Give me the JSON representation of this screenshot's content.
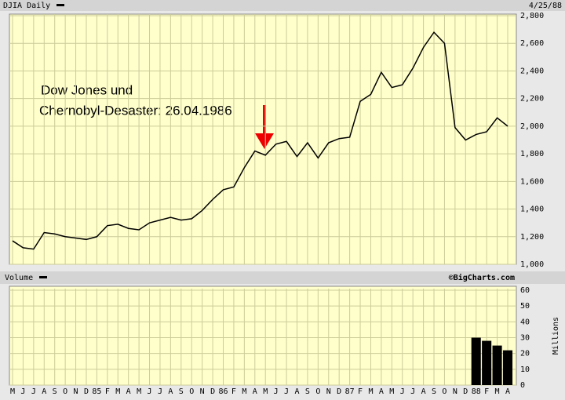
{
  "chart_data": [
    {
      "type": "line",
      "title": "DJIA Daily",
      "date": "4/25/88",
      "annotation": [
        "Dow Jones und",
        "Chernobyl-Desaster: 26.04.1986"
      ],
      "categories": [
        "M",
        "J",
        "J",
        "A",
        "S",
        "O",
        "N",
        "D",
        "85",
        "F",
        "M",
        "A",
        "M",
        "J",
        "J",
        "A",
        "S",
        "O",
        "N",
        "D",
        "86",
        "F",
        "M",
        "A",
        "M",
        "J",
        "J",
        "A",
        "S",
        "O",
        "N",
        "D",
        "87",
        "F",
        "M",
        "A",
        "M",
        "J",
        "J",
        "A",
        "S",
        "O",
        "N",
        "D",
        "88",
        "F",
        "M",
        "A"
      ],
      "series": [
        {
          "name": "DJIA",
          "color": "#000000",
          "values": [
            1170,
            1120,
            1110,
            1230,
            1220,
            1200,
            1190,
            1180,
            1200,
            1280,
            1290,
            1260,
            1250,
            1300,
            1320,
            1340,
            1320,
            1330,
            1390,
            1470,
            1540,
            1560,
            1700,
            1820,
            1790,
            1870,
            1890,
            1780,
            1880,
            1770,
            1880,
            1910,
            1920,
            2180,
            2230,
            2390,
            2280,
            2300,
            2420,
            2570,
            2680,
            2600,
            1990,
            1900,
            1940,
            1960,
            2060,
            2000
          ]
        }
      ],
      "ylim": [
        1000,
        2800
      ],
      "yticks": [
        {
          "value": 1000,
          "label": "1,000"
        },
        {
          "value": 1200,
          "label": "1,200"
        },
        {
          "value": 1400,
          "label": "1,400"
        },
        {
          "value": 1600,
          "label": "1,600"
        },
        {
          "value": 1800,
          "label": "1,800"
        },
        {
          "value": 2000,
          "label": "2,000"
        },
        {
          "value": 2200,
          "label": "2,200"
        },
        {
          "value": 2400,
          "label": "2,400"
        },
        {
          "value": 2600,
          "label": "2,600"
        },
        {
          "value": 2800,
          "label": "2,800"
        }
      ],
      "grid": true
    },
    {
      "type": "bar",
      "title": "Volume",
      "source": "©BigCharts.com",
      "y_label": "Millions",
      "color": "#000000",
      "values": [
        null,
        null,
        null,
        null,
        null,
        null,
        null,
        null,
        null,
        null,
        null,
        null,
        null,
        null,
        null,
        null,
        null,
        null,
        null,
        null,
        null,
        null,
        null,
        null,
        null,
        null,
        null,
        null,
        null,
        null,
        null,
        null,
        null,
        null,
        null,
        null,
        null,
        null,
        null,
        null,
        null,
        null,
        null,
        null,
        30,
        28,
        25,
        22
      ],
      "ylim": [
        0,
        60
      ],
      "yticks": [
        0,
        10,
        20,
        30,
        40,
        50,
        60
      ],
      "grid": true
    }
  ]
}
